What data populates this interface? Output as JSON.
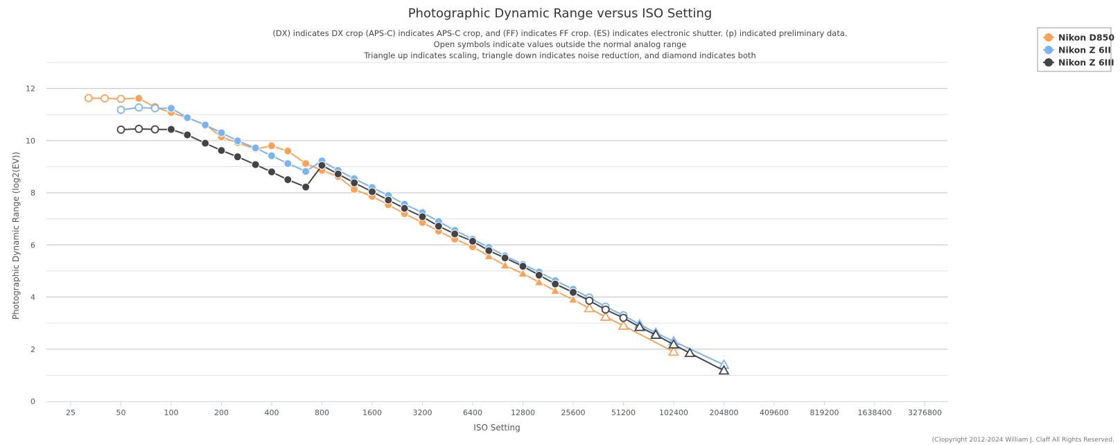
{
  "chart_data": {
    "type": "line",
    "title": "Photographic Dynamic Range versus ISO Setting",
    "subtitle_lines": [
      "(DX) indicates DX crop (APS-C) indicates APS-C crop, and (FF) indicates FF crop. (ES) indicates electronic shutter. (p) indicated preliminary data.",
      "Open symbols indicate values outside the normal analog range",
      "Triangle up indicates scaling, triangle down indicates noise reduction, and diamond indicates both"
    ],
    "xlabel": "ISO Setting",
    "ylabel": "Photographic Dynamic Range (log2(EV))",
    "x_scale": "log2",
    "x_ticks": [
      25,
      50,
      100,
      200,
      400,
      800,
      1600,
      3200,
      6400,
      12800,
      25600,
      51200,
      102400,
      204800,
      409600,
      819200,
      1638400,
      3276800
    ],
    "ylim": [
      0,
      13
    ],
    "y_ticks": [
      0,
      2,
      4,
      6,
      8,
      10,
      12
    ],
    "grid": true,
    "legend_position": "top-right",
    "copyright": "(C)opyright 2012-2024 William J. Claff All Rights Reserved.",
    "series": [
      {
        "name": "Nikon D850",
        "color": "#f7a35c",
        "points": [
          {
            "x": 32,
            "y": 11.63,
            "m": "co"
          },
          {
            "x": 40,
            "y": 11.62,
            "m": "co"
          },
          {
            "x": 50,
            "y": 11.6,
            "m": "co"
          },
          {
            "x": 64,
            "y": 11.62,
            "m": "c"
          },
          {
            "x": 80,
            "y": 11.28,
            "m": "co"
          },
          {
            "x": 100,
            "y": 11.08,
            "m": "c"
          },
          {
            "x": 125,
            "y": 10.87,
            "m": "c"
          },
          {
            "x": 160,
            "y": 10.62,
            "m": "c"
          },
          {
            "x": 200,
            "y": 10.14,
            "m": "c"
          },
          {
            "x": 250,
            "y": 9.92,
            "m": "c"
          },
          {
            "x": 320,
            "y": 9.68,
            "m": "c"
          },
          {
            "x": 400,
            "y": 9.8,
            "m": "c"
          },
          {
            "x": 500,
            "y": 9.6,
            "m": "c"
          },
          {
            "x": 640,
            "y": 9.12,
            "m": "c"
          },
          {
            "x": 800,
            "y": 8.86,
            "m": "c"
          },
          {
            "x": 1000,
            "y": 8.62,
            "m": "c"
          },
          {
            "x": 1250,
            "y": 8.13,
            "m": "c"
          },
          {
            "x": 1600,
            "y": 7.86,
            "m": "c"
          },
          {
            "x": 2000,
            "y": 7.54,
            "m": "c"
          },
          {
            "x": 2500,
            "y": 7.2,
            "m": "c"
          },
          {
            "x": 3200,
            "y": 6.86,
            "m": "c"
          },
          {
            "x": 4000,
            "y": 6.53,
            "m": "c"
          },
          {
            "x": 5000,
            "y": 6.22,
            "m": "c"
          },
          {
            "x": 6400,
            "y": 5.93,
            "m": "c"
          },
          {
            "x": 8000,
            "y": 5.57,
            "m": "t"
          },
          {
            "x": 10000,
            "y": 5.21,
            "m": "t"
          },
          {
            "x": 12800,
            "y": 4.9,
            "m": "t"
          },
          {
            "x": 16000,
            "y": 4.57,
            "m": "t"
          },
          {
            "x": 20000,
            "y": 4.24,
            "m": "t"
          },
          {
            "x": 25600,
            "y": 3.9,
            "m": "t"
          },
          {
            "x": 32000,
            "y": 3.57,
            "m": "to"
          },
          {
            "x": 40000,
            "y": 3.24,
            "m": "to"
          },
          {
            "x": 51200,
            "y": 2.9,
            "m": "to"
          },
          {
            "x": 102400,
            "y": 1.9,
            "m": "to"
          }
        ]
      },
      {
        "name": "Nikon Z 6II",
        "color": "#7cb5ec",
        "points": [
          {
            "x": 50,
            "y": 11.18,
            "m": "co"
          },
          {
            "x": 64,
            "y": 11.27,
            "m": "co"
          },
          {
            "x": 80,
            "y": 11.24,
            "m": "co"
          },
          {
            "x": 100,
            "y": 11.24,
            "m": "c"
          },
          {
            "x": 125,
            "y": 10.88,
            "m": "c"
          },
          {
            "x": 160,
            "y": 10.6,
            "m": "c"
          },
          {
            "x": 200,
            "y": 10.3,
            "m": "c"
          },
          {
            "x": 250,
            "y": 9.99,
            "m": "c"
          },
          {
            "x": 320,
            "y": 9.72,
            "m": "c"
          },
          {
            "x": 400,
            "y": 9.42,
            "m": "c"
          },
          {
            "x": 500,
            "y": 9.12,
            "m": "c"
          },
          {
            "x": 640,
            "y": 8.82,
            "m": "c"
          },
          {
            "x": 800,
            "y": 9.22,
            "m": "c"
          },
          {
            "x": 1000,
            "y": 8.86,
            "m": "c"
          },
          {
            "x": 1250,
            "y": 8.54,
            "m": "c"
          },
          {
            "x": 1600,
            "y": 8.2,
            "m": "c"
          },
          {
            "x": 2000,
            "y": 7.9,
            "m": "c"
          },
          {
            "x": 2500,
            "y": 7.56,
            "m": "c"
          },
          {
            "x": 3200,
            "y": 7.24,
            "m": "c"
          },
          {
            "x": 4000,
            "y": 6.9,
            "m": "c"
          },
          {
            "x": 5000,
            "y": 6.56,
            "m": "c"
          },
          {
            "x": 6400,
            "y": 6.22,
            "m": "c"
          },
          {
            "x": 8000,
            "y": 5.91,
            "m": "c"
          },
          {
            "x": 10000,
            "y": 5.58,
            "m": "c"
          },
          {
            "x": 12800,
            "y": 5.25,
            "m": "c"
          },
          {
            "x": 16000,
            "y": 4.96,
            "m": "c"
          },
          {
            "x": 20000,
            "y": 4.63,
            "m": "c"
          },
          {
            "x": 25600,
            "y": 4.3,
            "m": "c"
          },
          {
            "x": 32000,
            "y": 3.98,
            "m": "co"
          },
          {
            "x": 40000,
            "y": 3.63,
            "m": "co"
          },
          {
            "x": 51200,
            "y": 3.3,
            "m": "co"
          },
          {
            "x": 64000,
            "y": 2.95,
            "m": "to"
          },
          {
            "x": 80000,
            "y": 2.63,
            "m": "to"
          },
          {
            "x": 102400,
            "y": 2.3,
            "m": "to"
          },
          {
            "x": 204800,
            "y": 1.4,
            "m": "to"
          }
        ]
      },
      {
        "name": "Nikon Z 6III",
        "color": "#434348",
        "points": [
          {
            "x": 50,
            "y": 10.42,
            "m": "co"
          },
          {
            "x": 64,
            "y": 10.45,
            "m": "co"
          },
          {
            "x": 80,
            "y": 10.43,
            "m": "co"
          },
          {
            "x": 100,
            "y": 10.43,
            "m": "c"
          },
          {
            "x": 125,
            "y": 10.22,
            "m": "c"
          },
          {
            "x": 160,
            "y": 9.9,
            "m": "c"
          },
          {
            "x": 200,
            "y": 9.62,
            "m": "c"
          },
          {
            "x": 250,
            "y": 9.38,
            "m": "c"
          },
          {
            "x": 320,
            "y": 9.08,
            "m": "c"
          },
          {
            "x": 400,
            "y": 8.8,
            "m": "c"
          },
          {
            "x": 500,
            "y": 8.5,
            "m": "c"
          },
          {
            "x": 640,
            "y": 8.22,
            "m": "c"
          },
          {
            "x": 800,
            "y": 9.05,
            "m": "c"
          },
          {
            "x": 1000,
            "y": 8.72,
            "m": "c"
          },
          {
            "x": 1250,
            "y": 8.38,
            "m": "c"
          },
          {
            "x": 1600,
            "y": 8.04,
            "m": "c"
          },
          {
            "x": 2000,
            "y": 7.72,
            "m": "c"
          },
          {
            "x": 2500,
            "y": 7.4,
            "m": "c"
          },
          {
            "x": 3200,
            "y": 7.08,
            "m": "c"
          },
          {
            "x": 4000,
            "y": 6.72,
            "m": "c"
          },
          {
            "x": 5000,
            "y": 6.42,
            "m": "c"
          },
          {
            "x": 6400,
            "y": 6.14,
            "m": "c"
          },
          {
            "x": 8000,
            "y": 5.78,
            "m": "c"
          },
          {
            "x": 10000,
            "y": 5.5,
            "m": "c"
          },
          {
            "x": 12800,
            "y": 5.18,
            "m": "c"
          },
          {
            "x": 16000,
            "y": 4.84,
            "m": "c"
          },
          {
            "x": 20000,
            "y": 4.5,
            "m": "c"
          },
          {
            "x": 25600,
            "y": 4.18,
            "m": "c"
          },
          {
            "x": 32000,
            "y": 3.86,
            "m": "co"
          },
          {
            "x": 40000,
            "y": 3.52,
            "m": "co"
          },
          {
            "x": 51200,
            "y": 3.2,
            "m": "co"
          },
          {
            "x": 64000,
            "y": 2.85,
            "m": "to"
          },
          {
            "x": 80000,
            "y": 2.55,
            "m": "to"
          },
          {
            "x": 102400,
            "y": 2.18,
            "m": "to"
          },
          {
            "x": 128000,
            "y": 1.85,
            "m": "to"
          },
          {
            "x": 204800,
            "y": 1.18,
            "m": "to"
          }
        ]
      }
    ]
  }
}
